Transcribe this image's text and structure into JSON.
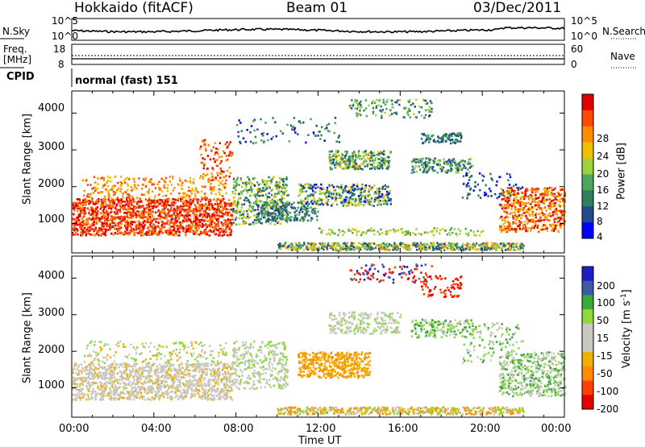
{
  "header": {
    "radar": "Hokkaido (fitACF)",
    "beam": "Beam 01",
    "date": "03/Dec/2011"
  },
  "noise_panel": {
    "left_label": "N.Sky",
    "right_label": "N.Search",
    "ticks": [
      "10^5",
      "10^0"
    ]
  },
  "freq_panel": {
    "left_label_1": "Freq.",
    "left_label_2": "[MHz]",
    "left_ticks": [
      "18",
      "8"
    ],
    "right_label": "Nave",
    "right_ticks": [
      "60",
      "0"
    ]
  },
  "cpid_panel": {
    "label": "CPID",
    "text": "normal (fast) 151"
  },
  "colors": {
    "power_scale": [
      "#0000ff",
      "#234b8c",
      "#2e7f5a",
      "#4ea65a",
      "#9bd43a",
      "#f0c000",
      "#ff8c00",
      "#ff4a00",
      "#e00000"
    ],
    "velocity_scale": [
      "#e60000",
      "#ff4000",
      "#ff8c00",
      "#f0b000",
      "#c8c8c0",
      "#c8c8c0",
      "#8ed840",
      "#3aa83a",
      "#3c5aa8",
      "#1e1ec8"
    ]
  },
  "chart_data": [
    {
      "type": "heatmap",
      "ylabel": "Slant Range [km]",
      "xlabel": "Time UT",
      "x_ticks": [
        "00:00",
        "04:00",
        "08:00",
        "12:00",
        "16:00",
        "20:00",
        "00:00"
      ],
      "y_ticks": [
        "1000",
        "2000",
        "3000",
        "4000"
      ],
      "xlim_hours": [
        0,
        24
      ],
      "ylim_km": [
        200,
        4600
      ],
      "colorbar": {
        "label": "Power [dB]",
        "ticks": [
          "28",
          "24",
          "20",
          "16",
          "12",
          "8",
          "4"
        ],
        "range": [
          0,
          30
        ]
      }
    },
    {
      "type": "heatmap",
      "ylabel": "Slant Range [km]",
      "xlabel": "Time UT",
      "x_ticks": [
        "00:00",
        "04:00",
        "08:00",
        "12:00",
        "16:00",
        "20:00",
        "00:00"
      ],
      "y_ticks": [
        "1000",
        "2000",
        "3000",
        "4000"
      ],
      "xlim_hours": [
        0,
        24
      ],
      "ylim_km": [
        200,
        4600
      ],
      "colorbar": {
        "label_main": "Velocity",
        "label_unit": "[m s",
        "label_exp": "-1",
        "label_close": "]",
        "ticks": [
          "200",
          "100",
          "50",
          "15",
          "-15",
          "-50",
          "-100",
          "-200"
        ]
      }
    }
  ]
}
